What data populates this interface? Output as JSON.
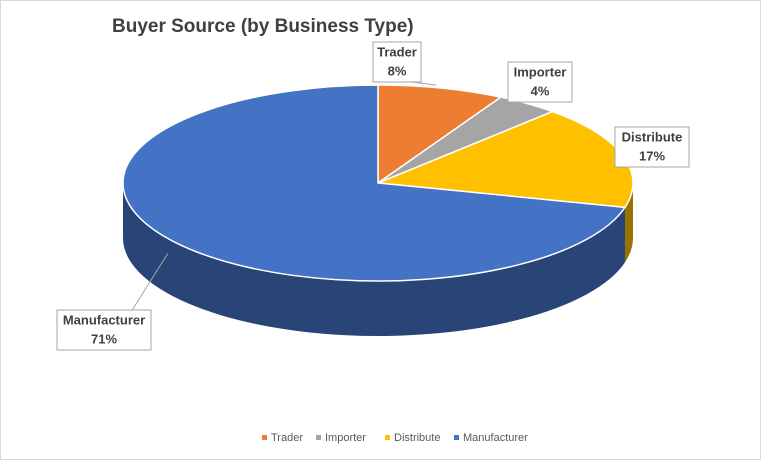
{
  "chart_data": {
    "type": "pie",
    "title": "Buyer Source (by Business Type)",
    "categories": [
      "Trader",
      "Importer",
      "Distribute",
      "Manufacturer"
    ],
    "values": [
      8,
      4,
      17,
      71
    ],
    "value_labels": [
      "8%",
      "4%",
      "17%",
      "71%"
    ],
    "colors": [
      "#ED7D31",
      "#A5A5A5",
      "#FFC000",
      "#4472C4"
    ],
    "legend": "bottom"
  }
}
